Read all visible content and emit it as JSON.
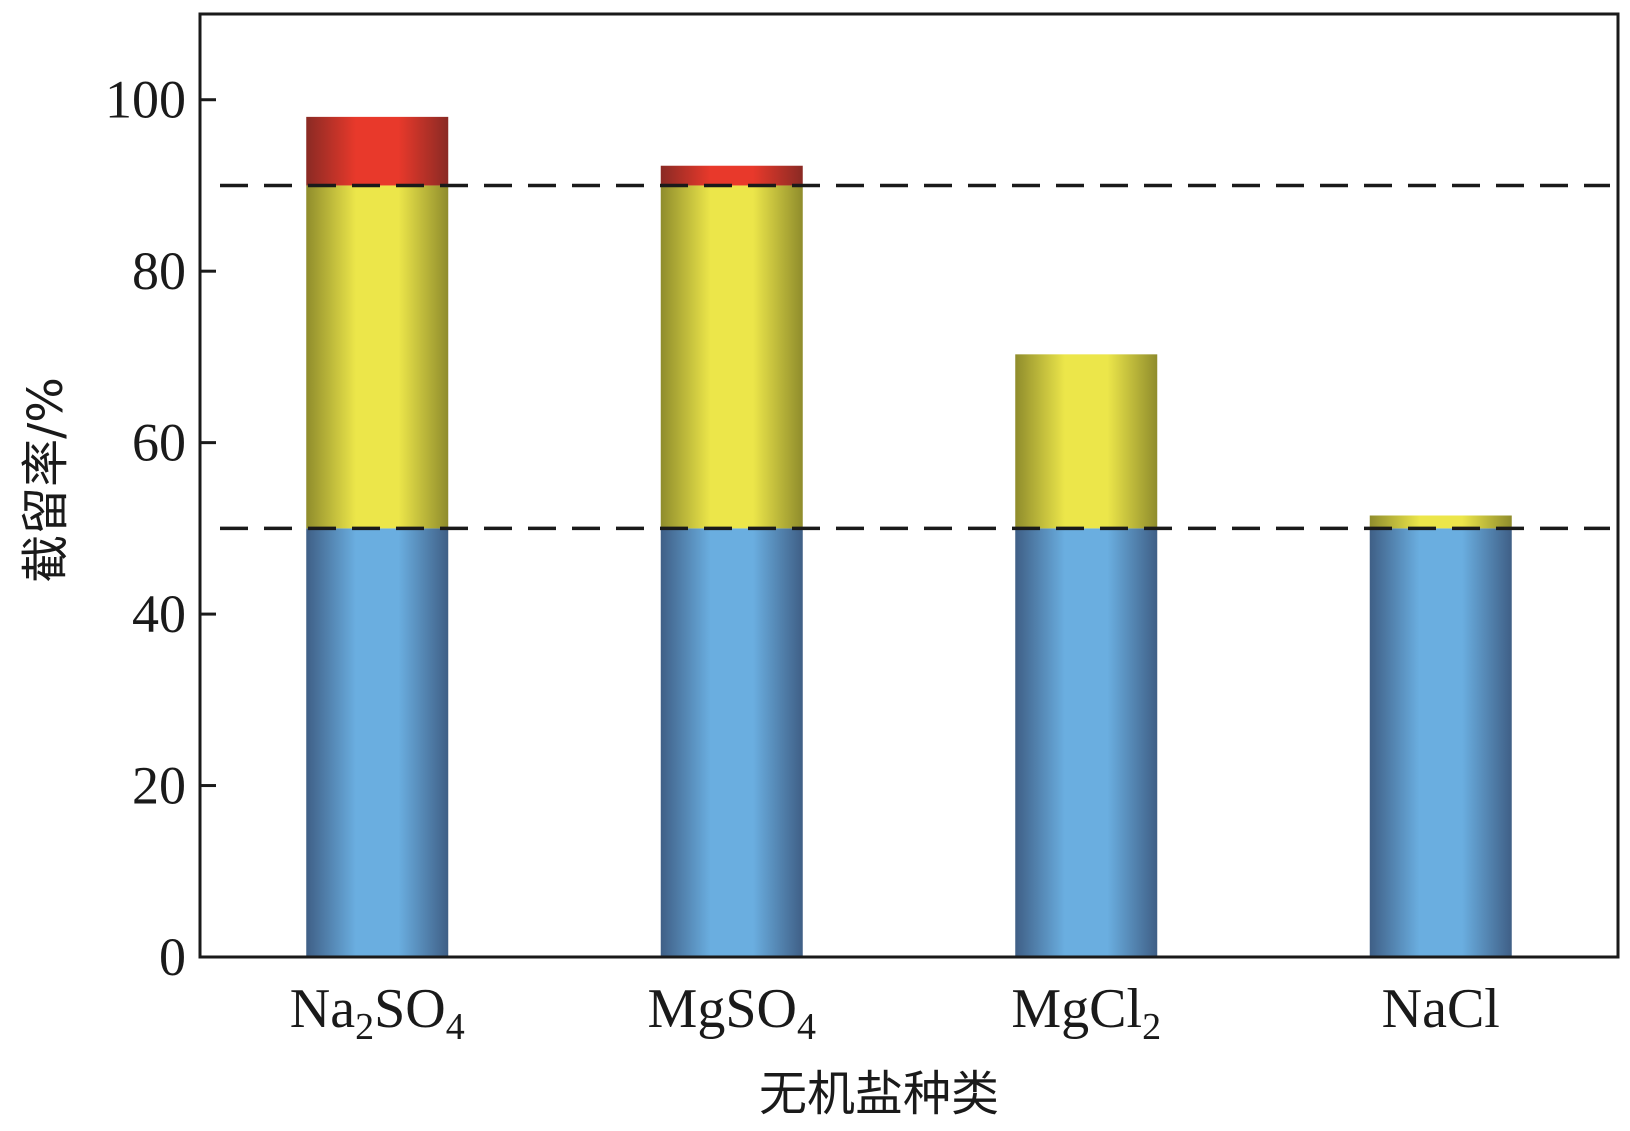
{
  "chart_data": {
    "type": "bar",
    "stacked": true,
    "xlabel": "无机盐种类",
    "ylabel": "截留率/%",
    "ylim": [
      0,
      110
    ],
    "yticks": [
      0,
      20,
      40,
      60,
      80,
      100
    ],
    "grid": false,
    "legend": "none",
    "categories": [
      {
        "main": "Na",
        "sub1": "2",
        "mid": "SO",
        "sub2": "4"
      },
      {
        "main": "MgSO",
        "sub1": "4",
        "mid": "",
        "sub2": ""
      },
      {
        "main": "MgCl",
        "sub1": "2",
        "mid": "",
        "sub2": ""
      },
      {
        "main": "NaCl",
        "sub1": "",
        "mid": "",
        "sub2": ""
      }
    ],
    "series": [
      {
        "values": [
          50,
          50,
          50,
          50
        ],
        "color": "#6aaee0",
        "edge_color": "#3f5f86"
      },
      {
        "values": [
          40,
          40,
          20.3,
          1.5
        ],
        "color": "#ece64a",
        "edge_color": "#8f8c2c"
      },
      {
        "values": [
          8,
          2.3,
          0,
          0
        ],
        "color": "#e8392b",
        "edge_color": "#8a2a24"
      }
    ],
    "reference_lines": [
      {
        "y": 90,
        "style": "dashed",
        "color": "#1a1a1a"
      },
      {
        "y": 50,
        "style": "dashed",
        "color": "#1a1a1a"
      }
    ]
  }
}
